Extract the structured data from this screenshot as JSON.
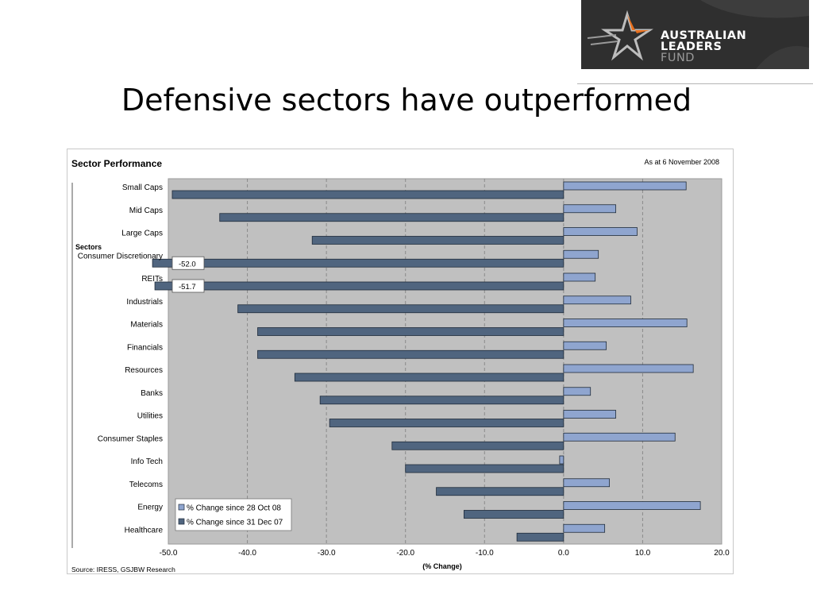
{
  "slide": {
    "title": "Defensive sectors have outperformed"
  },
  "logo": {
    "line1": "AUSTRALIAN",
    "line2": "LEADERS",
    "line3": "FUND"
  },
  "chart_data": {
    "type": "bar",
    "orientation": "horizontal",
    "title": "Sector Performance",
    "date_note": "As at 6 November 2008",
    "ylabel": "Sectors",
    "xlabel": "(% Change)",
    "source": "Source: IRESS, GSJBW Research",
    "xlim": [
      -50,
      20
    ],
    "xticks": [
      "-50.0",
      "-40.0",
      "-30.0",
      "-20.0",
      "-10.0",
      "0.0",
      "10.0",
      "20.0"
    ],
    "categories": [
      "Small Caps",
      "Mid Caps",
      "Large Caps",
      "Consumer Discretionary",
      "REITs",
      "Industrials",
      "Materials",
      "Financials",
      "Resources",
      "Banks",
      "Utilities",
      "Consumer Staples",
      "Info Tech",
      "Telecoms",
      "Energy",
      "Healthcare"
    ],
    "series": [
      {
        "name": "% Change since 28 Oct 08",
        "color": "#8fa5cf",
        "values": [
          15.5,
          6.6,
          9.3,
          4.4,
          4.0,
          8.5,
          15.6,
          5.4,
          16.4,
          3.4,
          6.6,
          14.1,
          -0.5,
          5.8,
          17.3,
          5.2
        ]
      },
      {
        "name": "% Change since 31 Dec 07",
        "color": "#50657f",
        "values": [
          -49.5,
          -43.5,
          -31.8,
          -52.0,
          -51.7,
          -41.2,
          -38.7,
          -38.7,
          -34.0,
          -30.8,
          -29.6,
          -21.7,
          -20.0,
          -16.1,
          -12.6,
          -5.9
        ]
      }
    ],
    "annotations": [
      {
        "category": "Consumer Discretionary",
        "text": "-52.0"
      },
      {
        "category": "REITs",
        "text": "-51.7"
      }
    ],
    "legend_position": "bottom-left",
    "grid": "vertical dashed"
  }
}
